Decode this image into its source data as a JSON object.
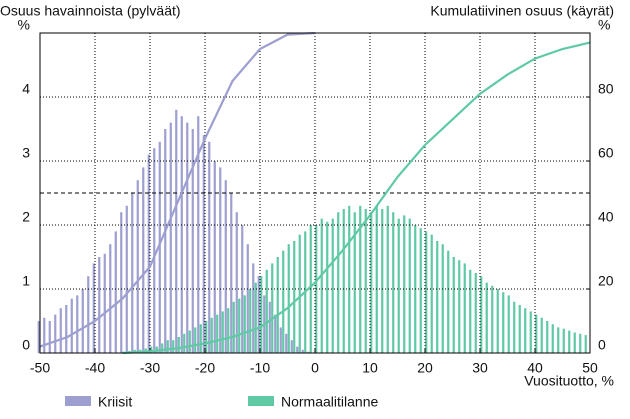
{
  "chart_data": [
    {
      "type": "bar",
      "title": "Osuus havainnoista (pylväät)",
      "xlabel": "Vuosituotto, %",
      "x": [
        -50,
        -49,
        -48,
        -47,
        -46,
        -45,
        -44,
        -43,
        -42,
        -41,
        -40,
        -39,
        -38,
        -37,
        -36,
        -35,
        -34,
        -33,
        -32,
        -31,
        -30,
        -29,
        -28,
        -27,
        -26,
        -25,
        -24,
        -23,
        -22,
        -21,
        -20,
        -19,
        -18,
        -17,
        -16,
        -15,
        -14,
        -13,
        -12,
        -11,
        -10,
        -9,
        -8,
        -7,
        -6,
        -5,
        -4,
        -3,
        -2,
        -1,
        0,
        1,
        2,
        3,
        4,
        5,
        6,
        7,
        8,
        9,
        10,
        11,
        12,
        13,
        14,
        15,
        16,
        17,
        18,
        19,
        20,
        21,
        22,
        23,
        24,
        25,
        26,
        27,
        28,
        29,
        30,
        31,
        32,
        33,
        34,
        35,
        36,
        37,
        38,
        39,
        40,
        41,
        42,
        43,
        44,
        45,
        46,
        47,
        48,
        49
      ],
      "series": [
        {
          "name": "Kriisit",
          "color": "#9d9fd1",
          "values": [
            0.5,
            0.55,
            0.5,
            0.6,
            0.7,
            0.75,
            0.85,
            0.9,
            1.0,
            1.2,
            1.4,
            1.5,
            1.55,
            1.7,
            1.9,
            2.2,
            2.3,
            2.5,
            2.7,
            2.9,
            3.1,
            3.2,
            3.3,
            3.5,
            3.6,
            3.8,
            3.7,
            3.6,
            3.5,
            3.7,
            3.4,
            3.3,
            3.0,
            2.9,
            2.7,
            2.5,
            2.2,
            2.0,
            1.7,
            1.4,
            1.2,
            0.9,
            0.8,
            0.6,
            0.4,
            0.3,
            0.2,
            0.1,
            0.05,
            0.02,
            null,
            null,
            null,
            null,
            null,
            null,
            null,
            null,
            null,
            null,
            null,
            null,
            null,
            null,
            null,
            null,
            null,
            null,
            null,
            null,
            null,
            null,
            null,
            null,
            null,
            null,
            null,
            null,
            null,
            null,
            null,
            null,
            null,
            null,
            null,
            null,
            null,
            null,
            null,
            null,
            null,
            null,
            null,
            null,
            null,
            null,
            null,
            null,
            null,
            null
          ]
        },
        {
          "name": "Normaalitilanne",
          "color": "#5fc9a4",
          "values": [
            null,
            null,
            null,
            null,
            null,
            null,
            null,
            null,
            null,
            null,
            null,
            null,
            null,
            null,
            null,
            0.02,
            0.03,
            0.05,
            0.05,
            0.07,
            0.1,
            0.1,
            0.15,
            0.2,
            0.2,
            0.25,
            0.3,
            0.35,
            0.4,
            0.45,
            0.5,
            0.55,
            0.6,
            0.65,
            0.7,
            0.8,
            0.85,
            0.9,
            1.0,
            1.1,
            1.2,
            1.3,
            1.4,
            1.5,
            1.6,
            1.7,
            1.75,
            1.85,
            1.9,
            2.0,
            2.0,
            2.1,
            2.05,
            2.1,
            2.2,
            2.25,
            2.3,
            2.2,
            2.3,
            2.25,
            2.2,
            2.3,
            2.25,
            2.3,
            2.2,
            2.1,
            2.15,
            2.1,
            2.0,
            1.95,
            1.9,
            1.85,
            1.75,
            1.7,
            1.6,
            1.5,
            1.45,
            1.4,
            1.3,
            1.25,
            1.2,
            1.1,
            1.05,
            1.0,
            0.95,
            0.9,
            0.8,
            0.75,
            0.7,
            0.65,
            0.6,
            0.55,
            0.5,
            0.45,
            0.4,
            0.38,
            0.35,
            0.32,
            0.3,
            0.28
          ]
        }
      ],
      "xlim": [
        -50,
        50
      ],
      "xticks": [
        -50,
        -40,
        -30,
        -20,
        -10,
        0,
        10,
        20,
        30,
        40,
        50
      ],
      "ylim": [
        0,
        5
      ],
      "yticks": [
        0,
        1,
        2,
        3,
        4,
        {
          "value": 5,
          "label": "%"
        }
      ],
      "grid": true
    },
    {
      "type": "line",
      "title": "Kumulatiivinen osuus (käyrät)",
      "x": [
        -50,
        -45,
        -40,
        -35,
        -30,
        -25,
        -20,
        -15,
        -10,
        -5,
        0,
        5,
        10,
        15,
        20,
        25,
        30,
        35,
        40,
        45,
        50
      ],
      "series": [
        {
          "color": "#9d9fd1",
          "axis": "y2",
          "values": [
            2,
            5,
            10,
            17,
            27,
            47,
            67,
            85,
            95,
            99.5,
            100,
            null,
            null,
            null,
            null,
            null,
            null,
            null,
            null,
            null,
            null
          ]
        },
        {
          "color": "#5fc9a4",
          "axis": "y2",
          "values": [
            null,
            null,
            null,
            0,
            0.5,
            1.5,
            3,
            5,
            8,
            14,
            22,
            32,
            43,
            55,
            65,
            73,
            81,
            87,
            92,
            95,
            97
          ]
        }
      ],
      "xlim": [
        -50,
        50
      ],
      "y2lim": [
        0,
        100
      ],
      "y2ticks": [
        0,
        20,
        40,
        60,
        80,
        {
          "value": 100,
          "label": "%"
        }
      ],
      "reference_line": 50
    }
  ]
}
